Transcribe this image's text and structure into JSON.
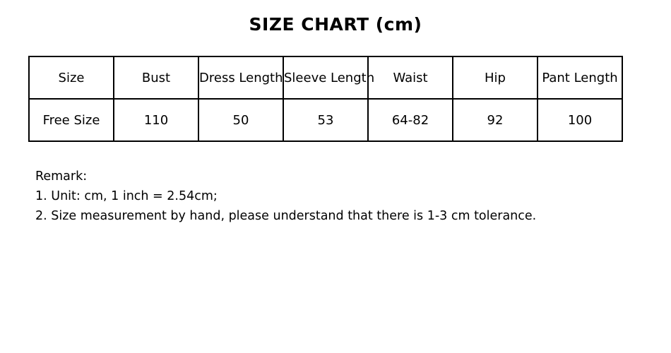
{
  "title": "SIZE CHART (cm)",
  "chart_data": {
    "type": "table",
    "title": "SIZE CHART (cm)",
    "unit": "cm",
    "columns": [
      "Size",
      "Bust",
      "Dress Length",
      "Sleeve Length",
      "Waist",
      "Hip",
      "Pant Length"
    ],
    "rows": [
      [
        "Free Size",
        "110",
        "50",
        "53",
        "64-82",
        "92",
        "100"
      ]
    ]
  },
  "remarks": {
    "heading": "Remark:",
    "lines": [
      "1. Unit: cm, 1 inch = 2.54cm;",
      "2. Size measurement by hand, please understand that there is 1-3 cm tolerance."
    ]
  },
  "colors": {
    "background": "#ffffff",
    "text": "#000000",
    "table_border": "#000000"
  }
}
